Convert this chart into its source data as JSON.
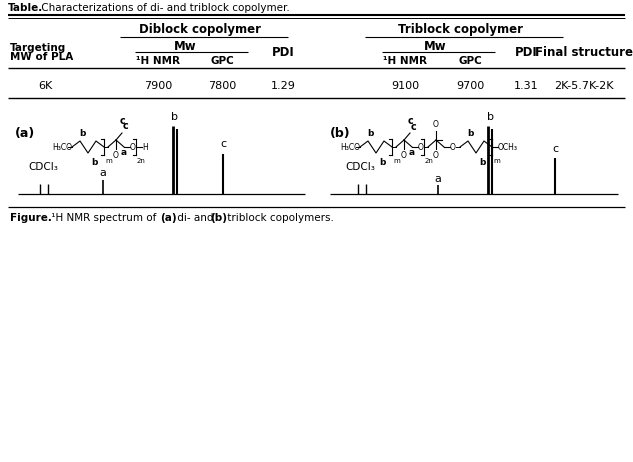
{
  "bg_color": "#ffffff",
  "table_title_bold": "Table.",
  "table_title_rest": " Characterizations of di- and triblock copolymer.",
  "diblock_header": "Diblock copolymer",
  "triblock_header": "Triblock copolymer",
  "targeting_line1": "Targeting",
  "targeting_line2": "MW of PLA",
  "mw_label": "Mw",
  "pdi_label": "PDI",
  "final_label": "Final structure",
  "h1nmr_label": "¹H NMR",
  "gpc_label": "GPC",
  "data": [
    "6K",
    "7900",
    "7800",
    "1.29",
    "9100",
    "9700",
    "1.31",
    "2K-5.7K-2K"
  ],
  "fig_caption_bold": "Figure.",
  "fig_caption_super": " ¹H NMR spectrum of ",
  "fig_caption_a_bold": "(a)",
  "fig_caption_mid": " di- and ",
  "fig_caption_b_bold": "(b)",
  "fig_caption_end": " triblock copolymers."
}
